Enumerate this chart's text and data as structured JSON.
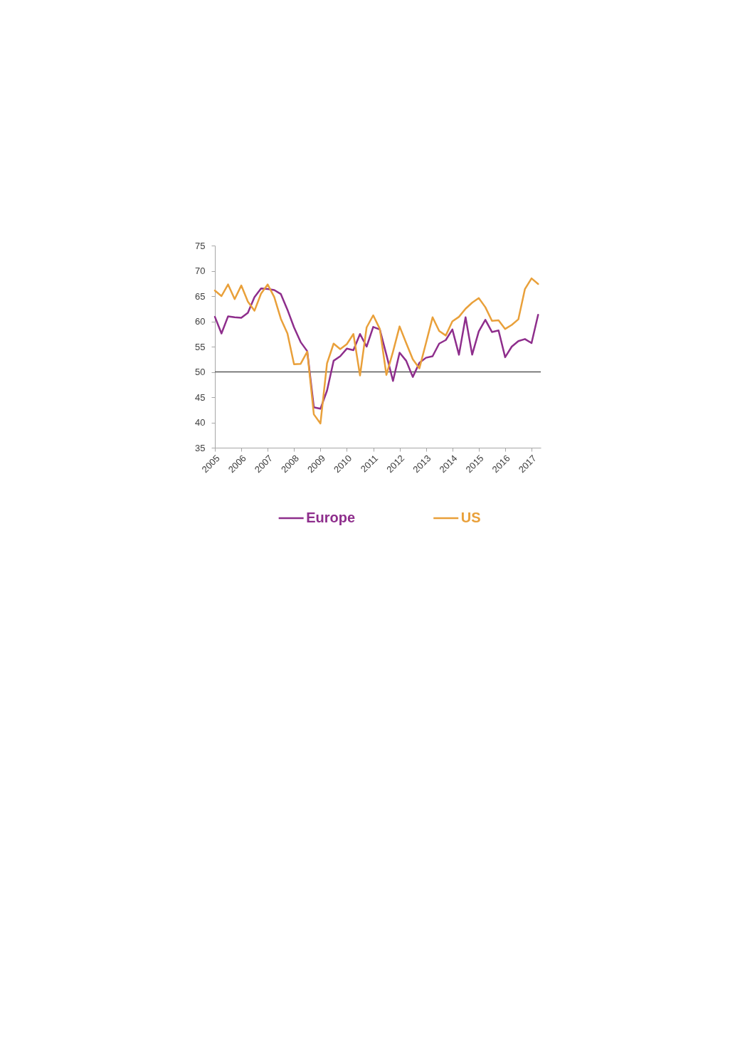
{
  "chart_data": {
    "type": "line",
    "x": [
      2005,
      2005.25,
      2005.5,
      2005.75,
      2006,
      2006.25,
      2006.5,
      2006.75,
      2007,
      2007.25,
      2007.5,
      2007.75,
      2008,
      2008.25,
      2008.5,
      2008.75,
      2009,
      2009.25,
      2009.5,
      2009.75,
      2010,
      2010.25,
      2010.5,
      2010.75,
      2011,
      2011.25,
      2011.5,
      2011.75,
      2012,
      2012.25,
      2012.5,
      2012.75,
      2013,
      2013.25,
      2013.5,
      2013.75,
      2014,
      2014.25,
      2014.5,
      2014.75,
      2015,
      2015.25,
      2015.5,
      2015.75,
      2016,
      2016.25,
      2016.5,
      2016.75,
      2017,
      2017.25
    ],
    "xlim": [
      2005,
      2017.35
    ],
    "xticks": [
      2005,
      2006,
      2007,
      2008,
      2009,
      2010,
      2011,
      2012,
      2013,
      2014,
      2015,
      2016,
      2017
    ],
    "ylim": [
      35,
      75
    ],
    "yticks": [
      35,
      40,
      45,
      50,
      55,
      60,
      65,
      70,
      75
    ],
    "series": [
      {
        "name": "Europe",
        "color": "#8e2e8c",
        "values": [
          60.9,
          57.6,
          61.0,
          60.8,
          60.7,
          61.7,
          64.8,
          66.5,
          66.4,
          66.2,
          65.4,
          62.3,
          58.8,
          55.9,
          54.1,
          43.0,
          42.7,
          46.3,
          52.2,
          53.1,
          54.6,
          54.3,
          57.5,
          55.0,
          58.9,
          58.4,
          53.4,
          48.2,
          53.8,
          52.2,
          49.0,
          51.8,
          52.8,
          53.1,
          55.6,
          56.3,
          58.4,
          53.4,
          60.8,
          53.4,
          58.0,
          60.3,
          57.9,
          58.2,
          52.9,
          55.0,
          56.1,
          56.5,
          55.7,
          61.3
        ]
      },
      {
        "name": "US",
        "color": "#e9a03a",
        "values": [
          66.1,
          65.0,
          67.3,
          64.4,
          67.1,
          63.9,
          62.1,
          65.5,
          67.3,
          64.8,
          60.5,
          57.6,
          51.5,
          51.6,
          54.0,
          41.6,
          39.8,
          51.7,
          55.6,
          54.5,
          55.5,
          57.5,
          49.3,
          58.8,
          61.2,
          58.5,
          49.4,
          54.0,
          59.0,
          55.7,
          52.5,
          50.7,
          55.7,
          60.8,
          58.1,
          57.2,
          60.0,
          60.9,
          62.5,
          63.7,
          64.6,
          62.8,
          60.1,
          60.2,
          58.5,
          59.3,
          60.4,
          66.4,
          68.5,
          67.4
        ]
      }
    ],
    "ref_lines": [
      {
        "axis": "y",
        "value": 50,
        "color": "#595959"
      }
    ],
    "legend": "bottom",
    "grid": false,
    "marker": "none",
    "line_style": "solid"
  }
}
